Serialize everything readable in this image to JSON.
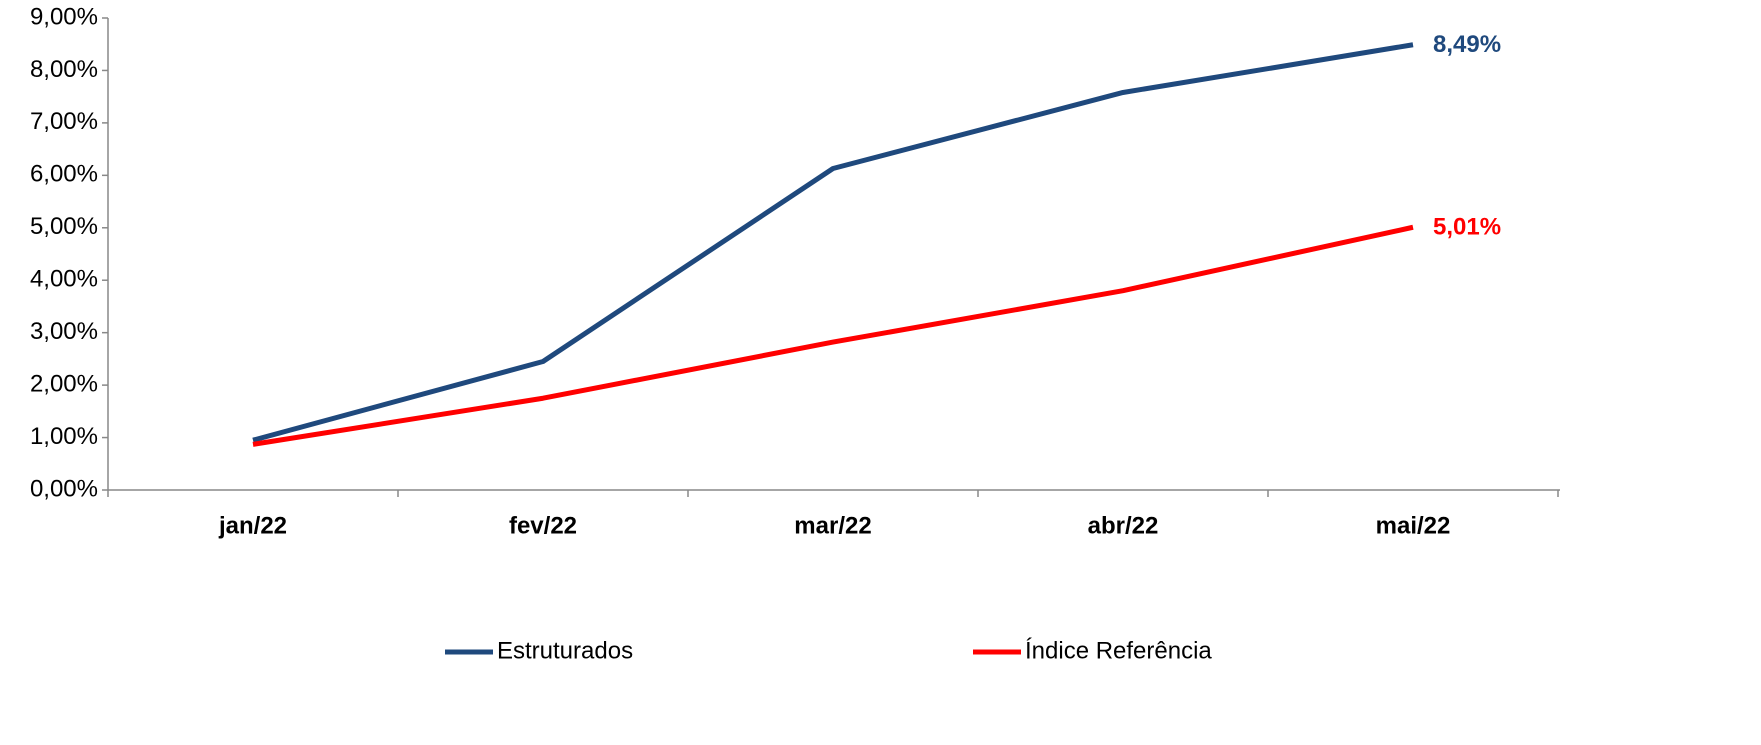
{
  "chart_data": {
    "type": "line",
    "categories": [
      "jan/22",
      "fev/22",
      "mar/22",
      "abr/22",
      "mai/22"
    ],
    "series": [
      {
        "name": "Estruturados",
        "color": "#1f497d",
        "values": [
          0.95,
          2.45,
          6.13,
          7.58,
          8.49
        ],
        "value_labels": [
          null,
          null,
          null,
          null,
          "8,49%"
        ]
      },
      {
        "name": "Índice Referência",
        "color": "#ff0000",
        "values": [
          0.87,
          1.75,
          2.82,
          3.8,
          5.01
        ],
        "value_labels": [
          null,
          null,
          null,
          null,
          "5,01%"
        ]
      }
    ],
    "ylim": [
      0,
      9
    ],
    "yticks": [
      {
        "value": 0,
        "label": "0,00%"
      },
      {
        "value": 1,
        "label": "1,00%"
      },
      {
        "value": 2,
        "label": "2,00%"
      },
      {
        "value": 3,
        "label": "3,00%"
      },
      {
        "value": 4,
        "label": "4,00%"
      },
      {
        "value": 5,
        "label": "5,00%"
      },
      {
        "value": 6,
        "label": "6,00%"
      },
      {
        "value": 7,
        "label": "7,00%"
      },
      {
        "value": 8,
        "label": "8,00%"
      },
      {
        "value": 9,
        "label": "9,00%"
      }
    ],
    "grid": false,
    "legend": "bottom"
  }
}
